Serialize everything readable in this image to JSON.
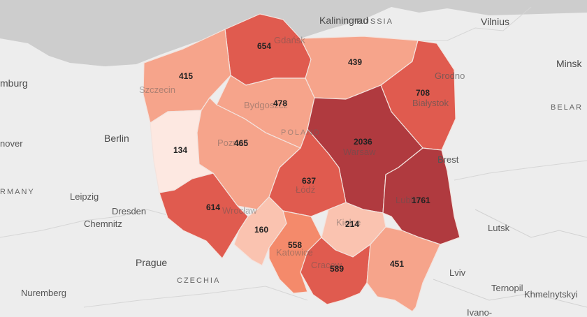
{
  "places": [
    {
      "id": "kaliningrad",
      "name": "Kaliningrad"
    },
    {
      "id": "russia",
      "name": "RUSSIA"
    },
    {
      "id": "vilnius",
      "name": "Vilnius"
    },
    {
      "id": "minsk",
      "name": "Minsk"
    },
    {
      "id": "belarus",
      "name": "BELAR"
    },
    {
      "id": "hamburg",
      "name": "mburg"
    },
    {
      "id": "hanover",
      "name": "nover"
    },
    {
      "id": "germany",
      "name": "RMANY"
    },
    {
      "id": "berlin",
      "name": "Berlin"
    },
    {
      "id": "leipzig",
      "name": "Leipzig"
    },
    {
      "id": "dresden",
      "name": "Dresden"
    },
    {
      "id": "chemnitz",
      "name": "Chemnitz"
    },
    {
      "id": "prague",
      "name": "Prague"
    },
    {
      "id": "czechia",
      "name": "CZECHIA"
    },
    {
      "id": "nuremberg",
      "name": "Nuremberg"
    },
    {
      "id": "grodno",
      "name": "Grodno"
    },
    {
      "id": "bialystok",
      "name": "Białystok"
    },
    {
      "id": "brest",
      "name": "Brest"
    },
    {
      "id": "lutsk",
      "name": "Lutsk"
    },
    {
      "id": "lviv",
      "name": "Lviv"
    },
    {
      "id": "ternopil",
      "name": "Ternopil"
    },
    {
      "id": "khmelnytskyi",
      "name": "Khmelnytskyi"
    },
    {
      "id": "ivano",
      "name": "Ivano-"
    },
    {
      "id": "poland",
      "name": "POLAND"
    },
    {
      "id": "gdansk",
      "name": "Gdańsk"
    },
    {
      "id": "szczecin",
      "name": "Szczecin"
    },
    {
      "id": "bydgoszcz",
      "name": "Bydgoszcz"
    },
    {
      "id": "poznan",
      "name": "Poznań"
    },
    {
      "id": "warsaw",
      "name": "Warsaw"
    },
    {
      "id": "lublin",
      "name": "Lublin"
    },
    {
      "id": "wroclaw",
      "name": "Wrocław"
    },
    {
      "id": "lodz",
      "name": "Łódź"
    },
    {
      "id": "kielce",
      "name": "Kielce"
    },
    {
      "id": "katowice",
      "name": "Katowice"
    },
    {
      "id": "krakow",
      "name": "Cracow"
    }
  ],
  "regions": [
    {
      "id": "pomorskie",
      "value": 654,
      "color": "#e05b4f"
    },
    {
      "id": "warminsko-mazurskie",
      "value": 439,
      "color": "#f6a48b"
    },
    {
      "id": "zachodniopomorskie",
      "value": 415,
      "color": "#f6a48b"
    },
    {
      "id": "kujawsko-pomorskie",
      "value": 478,
      "color": "#f6a48b"
    },
    {
      "id": "podlaskie",
      "value": 708,
      "color": "#e05b4f"
    },
    {
      "id": "lubuskie",
      "value": 134,
      "color": "#fde8e1"
    },
    {
      "id": "wielkopolskie",
      "value": 465,
      "color": "#f6a48b"
    },
    {
      "id": "mazowieckie",
      "value": 2036,
      "color": "#b03a3f"
    },
    {
      "id": "lodzkie",
      "value": 637,
      "color": "#e05b4f"
    },
    {
      "id": "lubelskie",
      "value": 1761,
      "color": "#b03a3f"
    },
    {
      "id": "dolnoslaskie",
      "value": 614,
      "color": "#e05b4f"
    },
    {
      "id": "opolskie",
      "value": 160,
      "color": "#fac3b0"
    },
    {
      "id": "swietokrzyskie",
      "value": 214,
      "color": "#fac3b0"
    },
    {
      "id": "slaskie",
      "value": 558,
      "color": "#f48a6b"
    },
    {
      "id": "malopolskie",
      "value": 589,
      "color": "#e05b4f"
    },
    {
      "id": "podkarpackie",
      "value": 451,
      "color": "#f6a48b"
    }
  ]
}
